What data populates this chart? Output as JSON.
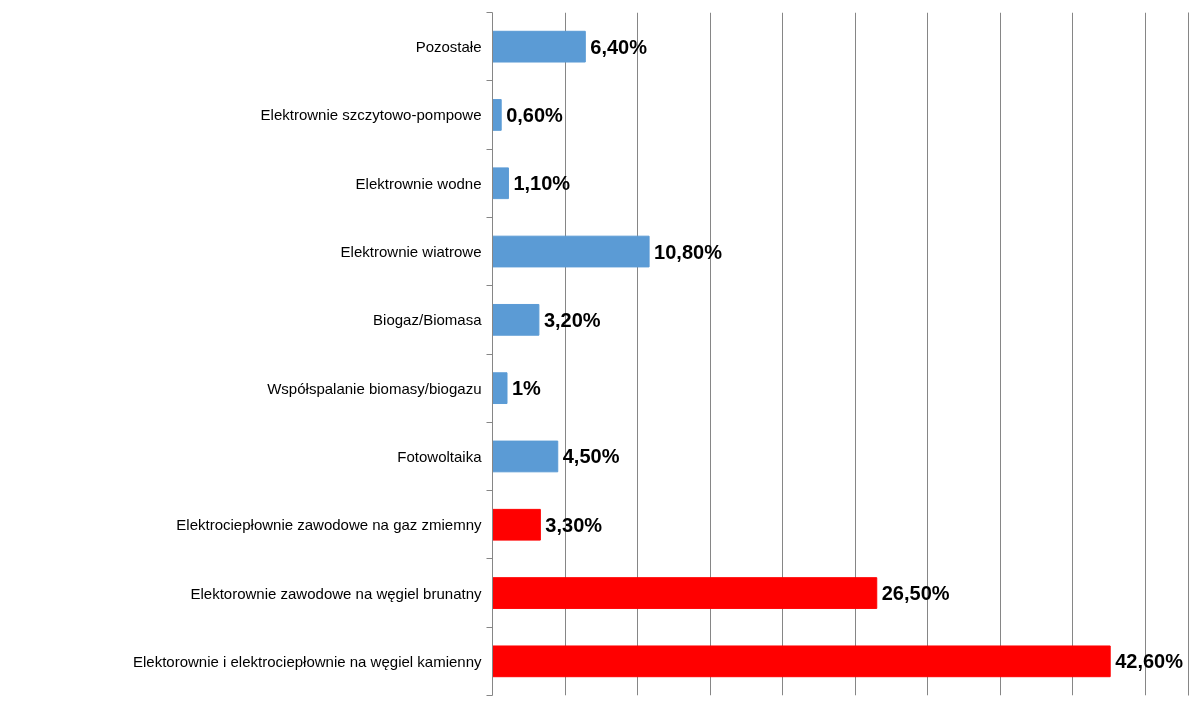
{
  "chart_data": {
    "type": "bar",
    "orientation": "horizontal",
    "categories": [
      "Pozostałe",
      "Elektrownie szczytowo-pompowe",
      "Elektrownie wodne",
      "Elektrownie wiatrowe",
      "Biogaz/Biomasa",
      "Współspalanie biomasy/biogazu",
      "Fotowoltaika",
      "Elektrociepłownie zawodowe na gaz zmiemny",
      "Elektorownie zawodowe na węgiel brunatny",
      "Elektorownie i elektrociepłownie na węgiel kamienny"
    ],
    "values": [
      6.4,
      0.6,
      1.1,
      10.8,
      3.2,
      1,
      4.5,
      3.3,
      26.5,
      42.6
    ],
    "colors": [
      "#5b9bd5",
      "#5b9bd5",
      "#5b9bd5",
      "#5b9bd5",
      "#5b9bd5",
      "#5b9bd5",
      "#5b9bd5",
      "#ff0000",
      "#ff0000",
      "#ff0000"
    ],
    "value_labels": [
      "6,40%",
      "0,60%",
      "1,10%",
      "10,80%",
      "3,20%",
      "1%",
      "4,50%",
      "3,30%",
      "26,50%",
      "42,60%"
    ],
    "xlim": [
      0,
      48
    ],
    "xticks": [
      {
        "value": 0,
        "label": null
      },
      {
        "value": 5,
        "label": null
      },
      {
        "value": 10,
        "label": null
      },
      {
        "value": 15,
        "label": null
      },
      {
        "value": 20,
        "label": null
      },
      {
        "value": 25,
        "label": null
      },
      {
        "value": 30,
        "label": null
      },
      {
        "value": 35,
        "label": null
      },
      {
        "value": 40,
        "label": null
      },
      {
        "value": 45,
        "label": null
      }
    ],
    "grid": "x",
    "tick_labels": "y"
  }
}
